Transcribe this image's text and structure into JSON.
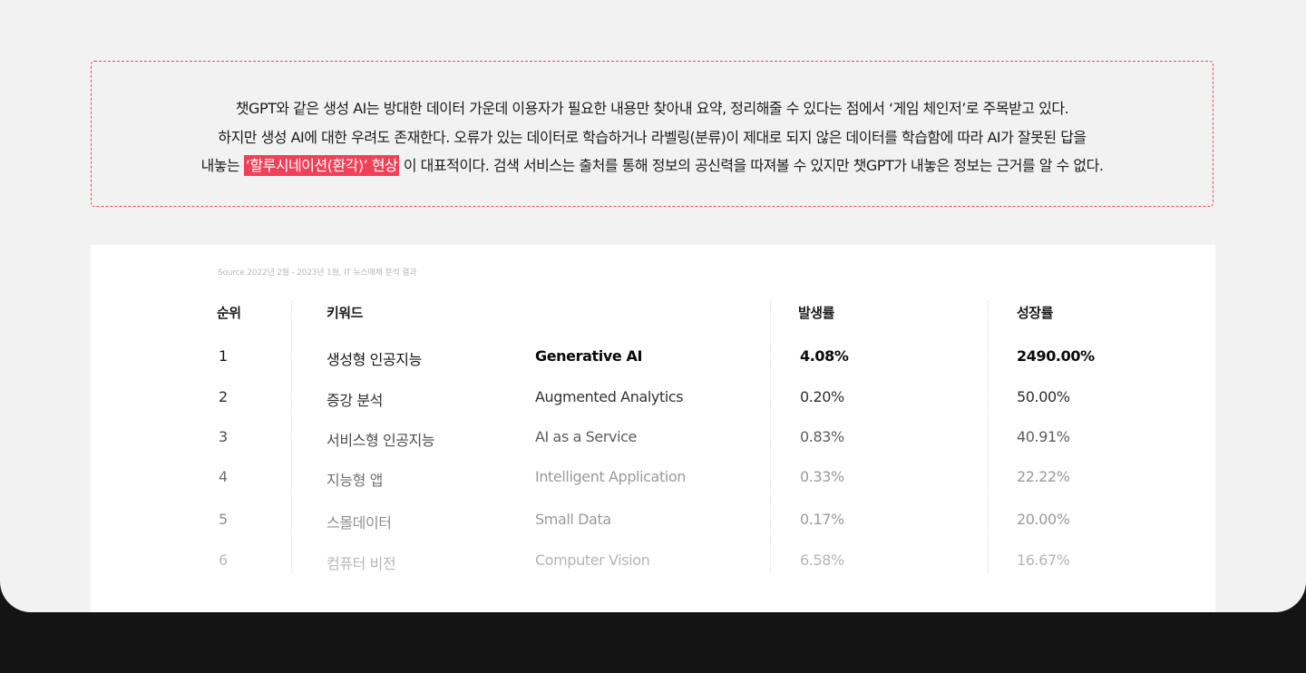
{
  "quote": {
    "line1": "챗GPT와 같은 생성 AI는 방대한 데이터 가운데 이용자가 필요한 내용만 찾아내 요약, 정리해줄 수 있다는 점에서 ‘게임 체인저’로 주목받고 있다.",
    "line2": "하지만 생성 AI에 대한 우려도 존재한다. 오류가 있는 데이터로 학습하거나 라벨링(분류)이 제대로 되지 않은 데이터를 학습함에 따라 AI가 잘못된 답을",
    "line3_prefix": "내놓는 ",
    "line3_highlight": "‘할루시네이션(환각)’ 현상",
    "line3_suffix": "이 대표적이다. 검색 서비스는 출처를 통해 정보의 공신력을 따져볼 수 있지만 챗GPT가 내놓은 정보는 근거를 알 수 없다.",
    "highlight_color": "#f0415a",
    "border_color": "#ef4a5e"
  },
  "table": {
    "source": "Source  2022년 2월 - 2023년 1월, IT 뉴스매체 분석 결과",
    "headers": {
      "rank": "순위",
      "keyword": "키워드",
      "occurrence": "발생률",
      "growth": "성장률"
    },
    "rows": [
      {
        "rank": "1",
        "keyword_kr": "생성형 인공지능",
        "keyword_en": "Generative AI",
        "occurrence": "4.08%",
        "growth": "2490.00%"
      },
      {
        "rank": "2",
        "keyword_kr": "증강 분석",
        "keyword_en": "Augmented Analytics",
        "occurrence": "0.20%",
        "growth": "50.00%"
      },
      {
        "rank": "3",
        "keyword_kr": "서비스형 인공지능",
        "keyword_en": "AI as a Service",
        "occurrence": "0.83%",
        "growth": "40.91%"
      },
      {
        "rank": "4",
        "keyword_kr": "지능형 앱",
        "keyword_en": "Intelligent Application",
        "occurrence": "0.33%",
        "growth": "22.22%"
      },
      {
        "rank": "5",
        "keyword_kr": "스몰데이터",
        "keyword_en": "Small Data",
        "occurrence": "0.17%",
        "growth": "20.00%"
      },
      {
        "rank": "6",
        "keyword_kr": "컴퓨터 비전",
        "keyword_en": "Computer Vision",
        "occurrence": "6.58%",
        "growth": "16.67%"
      }
    ]
  }
}
